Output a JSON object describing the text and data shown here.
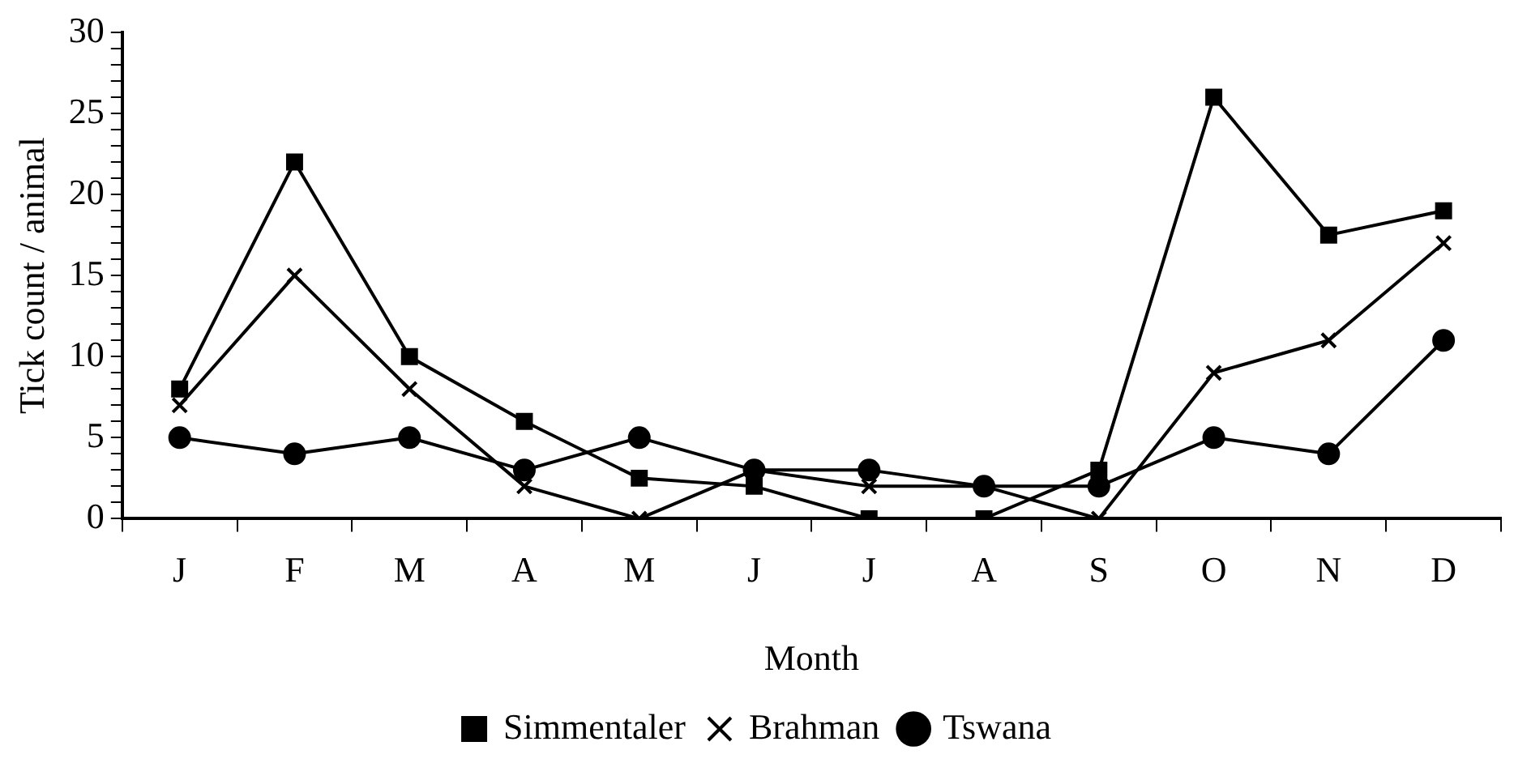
{
  "chart_data": {
    "type": "line",
    "xlabel": "Month",
    "ylabel": "Tick count / animal",
    "categories": [
      "J",
      "F",
      "M",
      "A",
      "M",
      "J",
      "J",
      "A",
      "S",
      "O",
      "N",
      "D"
    ],
    "series": [
      {
        "name": "Simmentaler",
        "color": "#000000",
        "marker": "square",
        "values": [
          8,
          22,
          10,
          6,
          2.5,
          2,
          0,
          0,
          3,
          26,
          17.5,
          19
        ]
      },
      {
        "name": "Brahman",
        "color": "#000000",
        "marker": "cross",
        "values": [
          7,
          15,
          8,
          2,
          0,
          3,
          2,
          2,
          0,
          9,
          11,
          17
        ]
      },
      {
        "name": "Tswana",
        "color": "#000000",
        "marker": "circle",
        "values": [
          5,
          4,
          5,
          3,
          5,
          3,
          3,
          2,
          2,
          5,
          4,
          11
        ]
      }
    ],
    "ylim": [
      0,
      30
    ],
    "yticks": [
      0,
      {
        "value": 1,
        "label": null
      },
      {
        "value": 2,
        "label": null
      },
      {
        "value": 3,
        "label": null
      },
      {
        "value": 4,
        "label": null
      },
      5,
      {
        "value": 6,
        "label": null
      },
      {
        "value": 7,
        "label": null
      },
      {
        "value": 8,
        "label": null
      },
      {
        "value": 9,
        "label": null
      },
      10,
      {
        "value": 11,
        "label": null
      },
      {
        "value": 12,
        "label": null
      },
      {
        "value": 13,
        "label": null
      },
      {
        "value": 14,
        "label": null
      },
      15,
      {
        "value": 16,
        "label": null
      },
      {
        "value": 17,
        "label": null
      },
      {
        "value": 18,
        "label": null
      },
      {
        "value": 19,
        "label": null
      },
      20,
      {
        "value": 21,
        "label": null
      },
      {
        "value": 22,
        "label": null
      },
      {
        "value": 23,
        "label": null
      },
      {
        "value": 24,
        "label": null
      },
      25,
      {
        "value": 26,
        "label": null
      },
      {
        "value": 27,
        "label": null
      },
      {
        "value": 28,
        "label": null
      },
      {
        "value": 29,
        "label": null
      },
      30
    ],
    "grid": false,
    "legend": "bottom",
    "line_style": "solid"
  }
}
